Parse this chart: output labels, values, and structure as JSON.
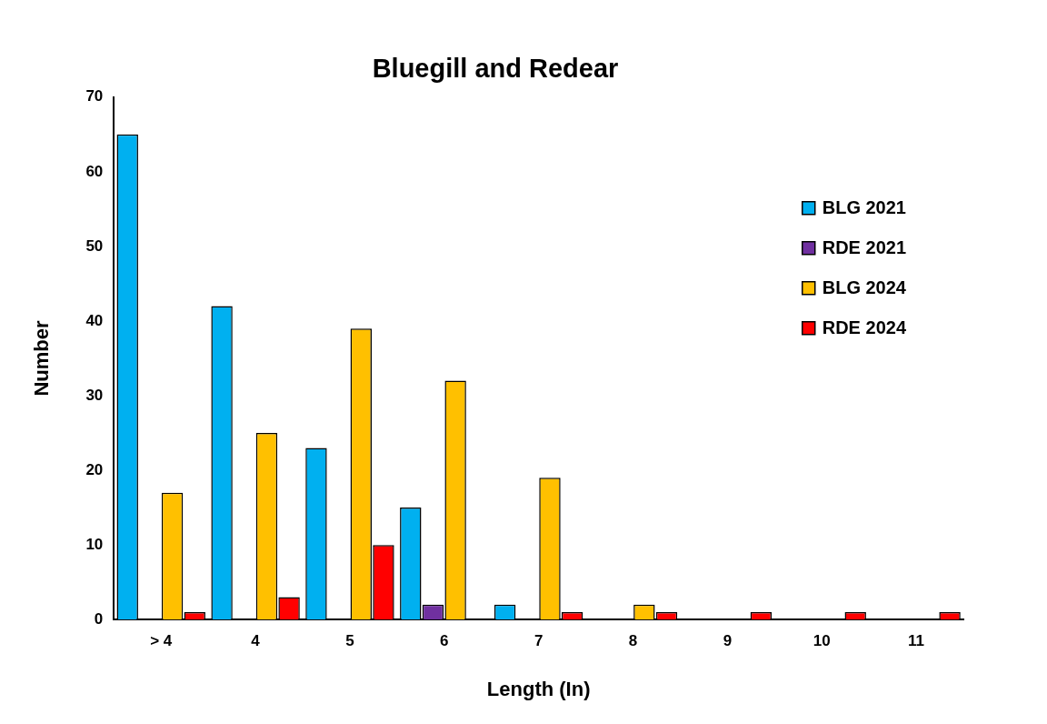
{
  "chart_data": {
    "type": "bar",
    "title": "Bluegill and Redear",
    "xlabel": "Length (In)",
    "ylabel": "Number",
    "categories": [
      "> 4",
      "4",
      "5",
      "6",
      "7",
      "8",
      "9",
      "10",
      "11"
    ],
    "series": [
      {
        "name": "BLG 2021",
        "color": "#00b0f0",
        "values": [
          65,
          42,
          23,
          15,
          2,
          0,
          0,
          0,
          0
        ]
      },
      {
        "name": "RDE 2021",
        "color": "#7030a0",
        "values": [
          0,
          0,
          0,
          2,
          0,
          0,
          0,
          0,
          0
        ]
      },
      {
        "name": "BLG 2024",
        "color": "#ffc000",
        "values": [
          17,
          25,
          39,
          32,
          19,
          2,
          0,
          0,
          0
        ]
      },
      {
        "name": "RDE 2024",
        "color": "#ff0000",
        "values": [
          1,
          3,
          10,
          0,
          1,
          1,
          1,
          1,
          1
        ]
      }
    ],
    "ylim": [
      0,
      70
    ],
    "yticks": [
      0,
      10,
      20,
      30,
      40,
      50,
      60,
      70
    ],
    "grid": false,
    "legend": "top right"
  }
}
